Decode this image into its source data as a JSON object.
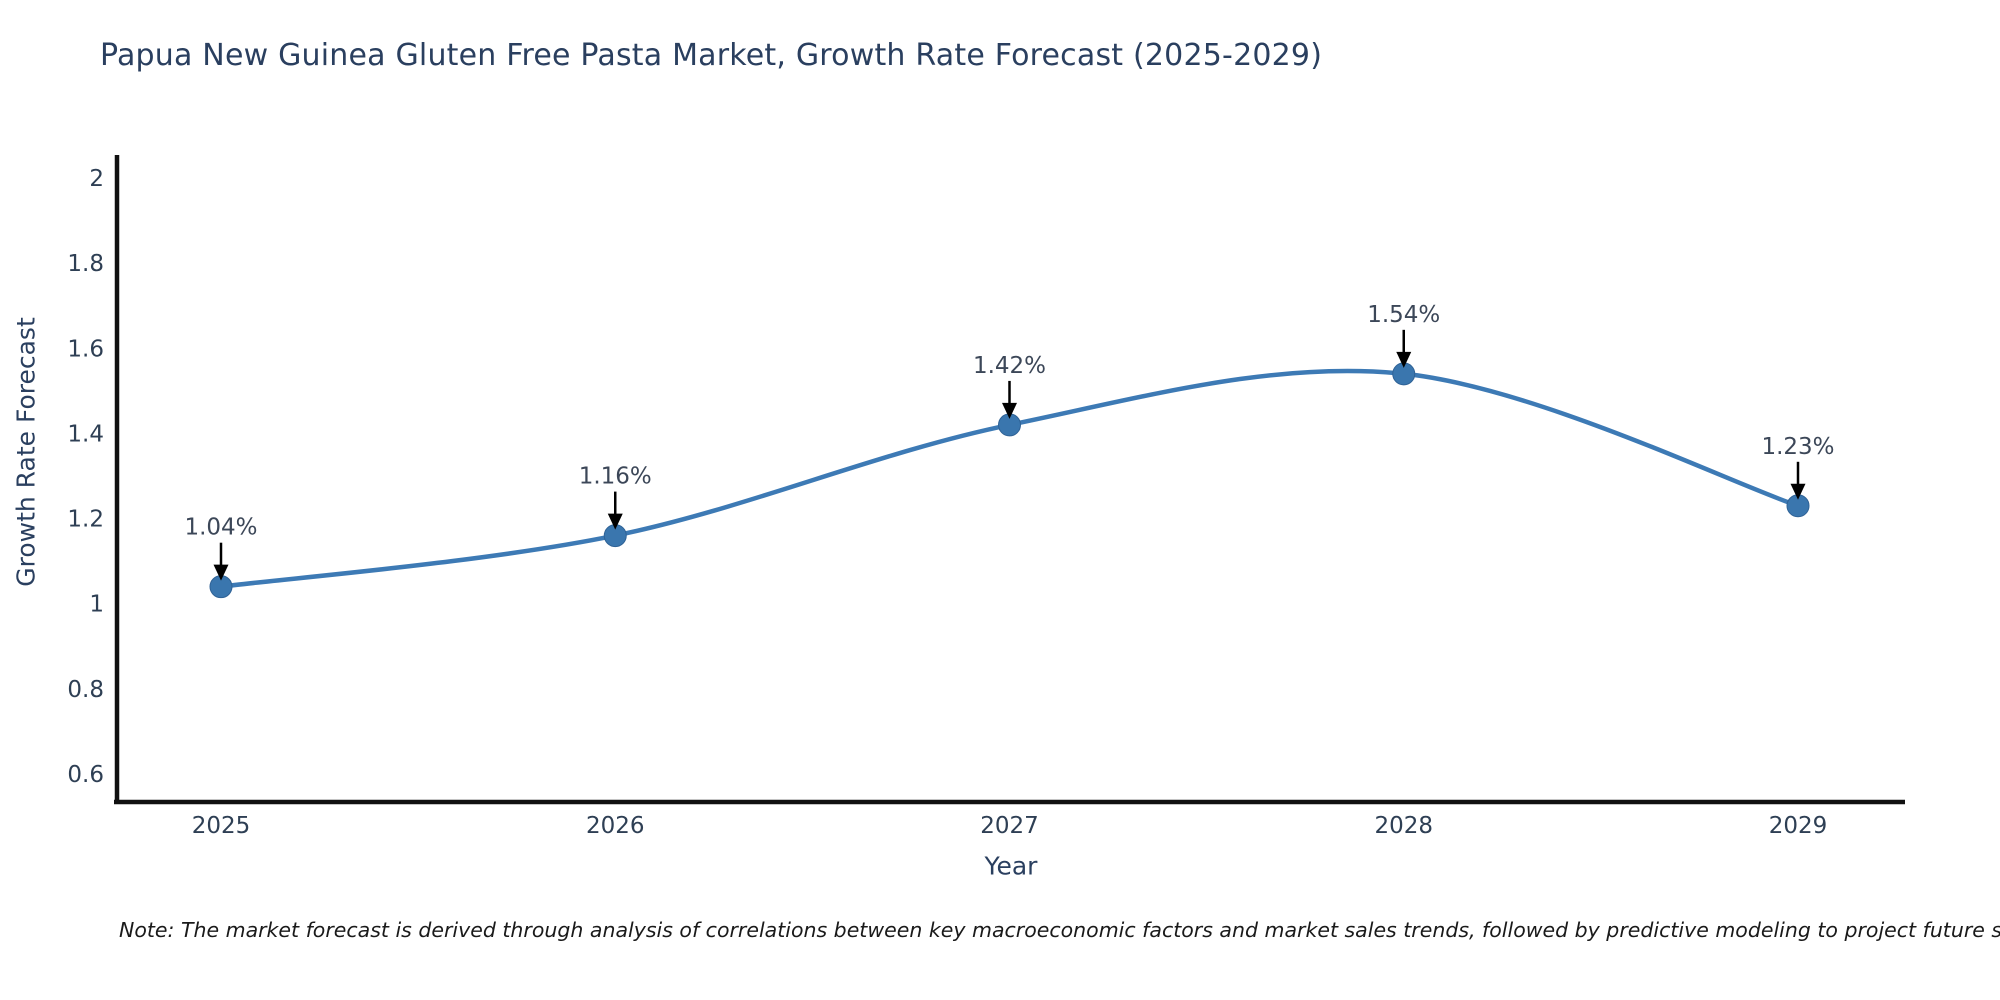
{
  "chart_data": {
    "type": "line",
    "title": "Papua New Guinea Gluten Free Pasta Market, Growth Rate Forecast (2025-2029)",
    "xlabel": "Year",
    "ylabel": "Growth Rate Forecast",
    "x": [
      2025,
      2026,
      2027,
      2028,
      2029
    ],
    "series": [
      {
        "name": "Growth Rate Forecast",
        "values": [
          1.04,
          1.16,
          1.42,
          1.54,
          1.23
        ]
      }
    ],
    "point_labels": [
      "1.04%",
      "1.16%",
      "1.42%",
      "1.54%",
      "1.23%"
    ],
    "xtick_labels": [
      "2025",
      "2026",
      "2027",
      "2028",
      "2029"
    ],
    "ytick_values": [
      2,
      1.8,
      1.6,
      1.4,
      1.2,
      1,
      0.8,
      0.6
    ],
    "ytick_labels": [
      "2",
      "1.8",
      "1.6",
      "1.4",
      "1.2",
      "1",
      "0.8",
      "0.6"
    ],
    "ylim": [
      0.53,
      2.06
    ],
    "line_shape": "spline",
    "grid": false,
    "legend_visible": false,
    "colors": {
      "line": "#3d7ab5",
      "marker_fill": "#3a76ae",
      "marker_edge": "#2f6296",
      "axis_line": "#111111",
      "title_text": "#2a3f5f",
      "axis_title_text": "#2a3f5f",
      "tick_text": "#2e3f54",
      "annotation_text": "#3c4758",
      "annotation_arrow": "#000000",
      "note_text": "#1a1a1a",
      "background": "#ffffff"
    },
    "note": "Note: The market forecast is derived through analysis of correlations between key macroeconomic factors and market sales trends, followed by predictive modeling to project future sales"
  }
}
